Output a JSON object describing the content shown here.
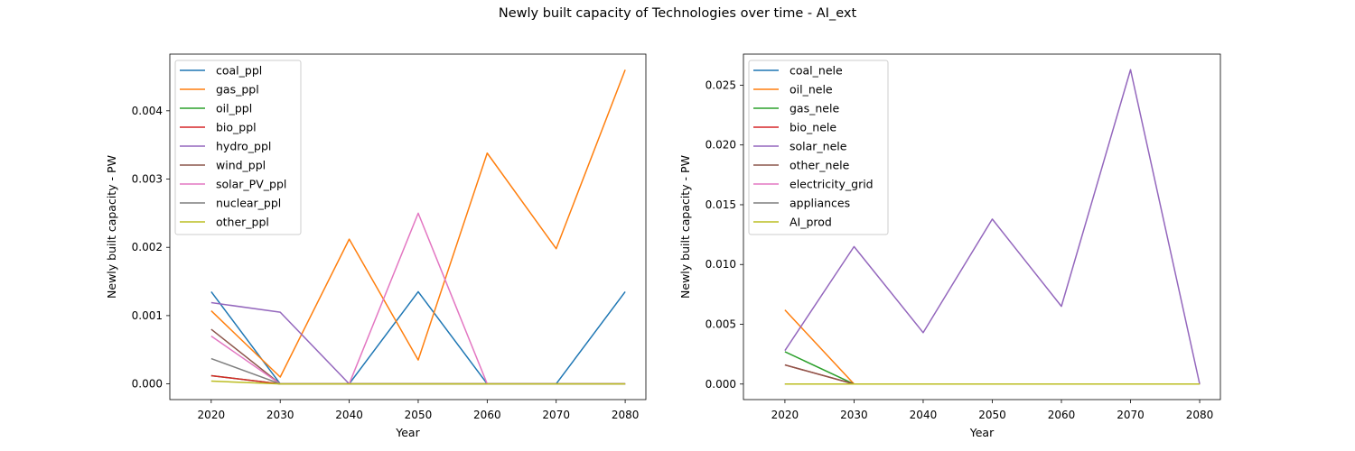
{
  "figure": {
    "title": "Newly built capacity of Technologies over time - AI_ext"
  },
  "chart_data": [
    {
      "type": "line",
      "xlabel": "Year",
      "ylabel": "Newly built capacity - PW",
      "x": [
        2020,
        2030,
        2040,
        2050,
        2060,
        2070,
        2080
      ],
      "xticks": [
        "2020",
        "2030",
        "2040",
        "2050",
        "2060",
        "2070",
        "2080"
      ],
      "xlim": [
        2014,
        2083
      ],
      "ylim": [
        -0.00023,
        0.00483
      ],
      "yticks": [
        "0.000",
        "0.001",
        "0.002",
        "0.003",
        "0.004"
      ],
      "ytick_values": [
        0,
        0.001,
        0.002,
        0.003,
        0.004
      ],
      "legend_position": "upper left",
      "series": [
        {
          "name": "coal_ppl",
          "color": "#1f77b4",
          "values": [
            0.00135,
            0,
            0,
            0.00135,
            0,
            0,
            0.00135
          ]
        },
        {
          "name": "gas_ppl",
          "color": "#ff7f0e",
          "values": [
            0.00107,
            0.0001,
            0.00212,
            0.00035,
            0.00338,
            0.00198,
            0.0046
          ]
        },
        {
          "name": "oil_ppl",
          "color": "#2ca02c",
          "values": [
            0.00012,
            0,
            0,
            0,
            0,
            0,
            0
          ]
        },
        {
          "name": "bio_ppl",
          "color": "#d62728",
          "values": [
            0.00012,
            0,
            0,
            0,
            0,
            0,
            0
          ]
        },
        {
          "name": "hydro_ppl",
          "color": "#9467bd",
          "values": [
            0.00119,
            0.00105,
            0,
            0,
            0,
            0,
            0
          ]
        },
        {
          "name": "wind_ppl",
          "color": "#8c564b",
          "values": [
            0.0008,
            0,
            0,
            0,
            0,
            0,
            0
          ]
        },
        {
          "name": "solar_PV_ppl",
          "color": "#e377c2",
          "values": [
            0.0007,
            0,
            0,
            0.0025,
            0,
            0,
            0
          ]
        },
        {
          "name": "nuclear_ppl",
          "color": "#7f7f7f",
          "values": [
            0.00037,
            0,
            0,
            0,
            0,
            0,
            0
          ]
        },
        {
          "name": "other_ppl",
          "color": "#bcbd22",
          "values": [
            4e-05,
            0,
            0,
            0,
            0,
            0,
            0
          ]
        }
      ]
    },
    {
      "type": "line",
      "xlabel": "Year",
      "ylabel": "Newly built capacity - PW",
      "x": [
        2020,
        2030,
        2040,
        2050,
        2060,
        2070,
        2080
      ],
      "xticks": [
        "2020",
        "2030",
        "2040",
        "2050",
        "2060",
        "2070",
        "2080"
      ],
      "xlim": [
        2014,
        2083
      ],
      "ylim": [
        -0.0013,
        0.0276
      ],
      "yticks": [
        "0.000",
        "0.005",
        "0.010",
        "0.015",
        "0.020",
        "0.025"
      ],
      "ytick_values": [
        0,
        0.005,
        0.01,
        0.015,
        0.02,
        0.025
      ],
      "legend_position": "upper left",
      "series": [
        {
          "name": "coal_nele",
          "color": "#1f77b4",
          "values": [
            0,
            0,
            0,
            0,
            0,
            0,
            0
          ]
        },
        {
          "name": "oil_nele",
          "color": "#ff7f0e",
          "values": [
            0.0062,
            0,
            0,
            0,
            0,
            0,
            0
          ]
        },
        {
          "name": "gas_nele",
          "color": "#2ca02c",
          "values": [
            0.0027,
            0,
            0,
            0,
            0,
            0,
            0
          ]
        },
        {
          "name": "bio_nele",
          "color": "#d62728",
          "values": [
            0.0016,
            0,
            0,
            0,
            0,
            0,
            0
          ]
        },
        {
          "name": "solar_nele",
          "color": "#9467bd",
          "values": [
            0.0028,
            0.0115,
            0.0043,
            0.0138,
            0.0065,
            0.0263,
            0
          ]
        },
        {
          "name": "other_nele",
          "color": "#8c564b",
          "values": [
            0.0016,
            0,
            0,
            0,
            0,
            0,
            0
          ]
        },
        {
          "name": "electricity_grid",
          "color": "#e377c2",
          "values": [
            0,
            0,
            0,
            0,
            0,
            0,
            0
          ]
        },
        {
          "name": "appliances",
          "color": "#7f7f7f",
          "values": [
            0,
            0,
            0,
            0,
            0,
            0,
            0
          ]
        },
        {
          "name": "AI_prod",
          "color": "#bcbd22",
          "values": [
            0,
            0,
            0,
            0,
            0,
            0,
            0
          ]
        }
      ]
    }
  ]
}
